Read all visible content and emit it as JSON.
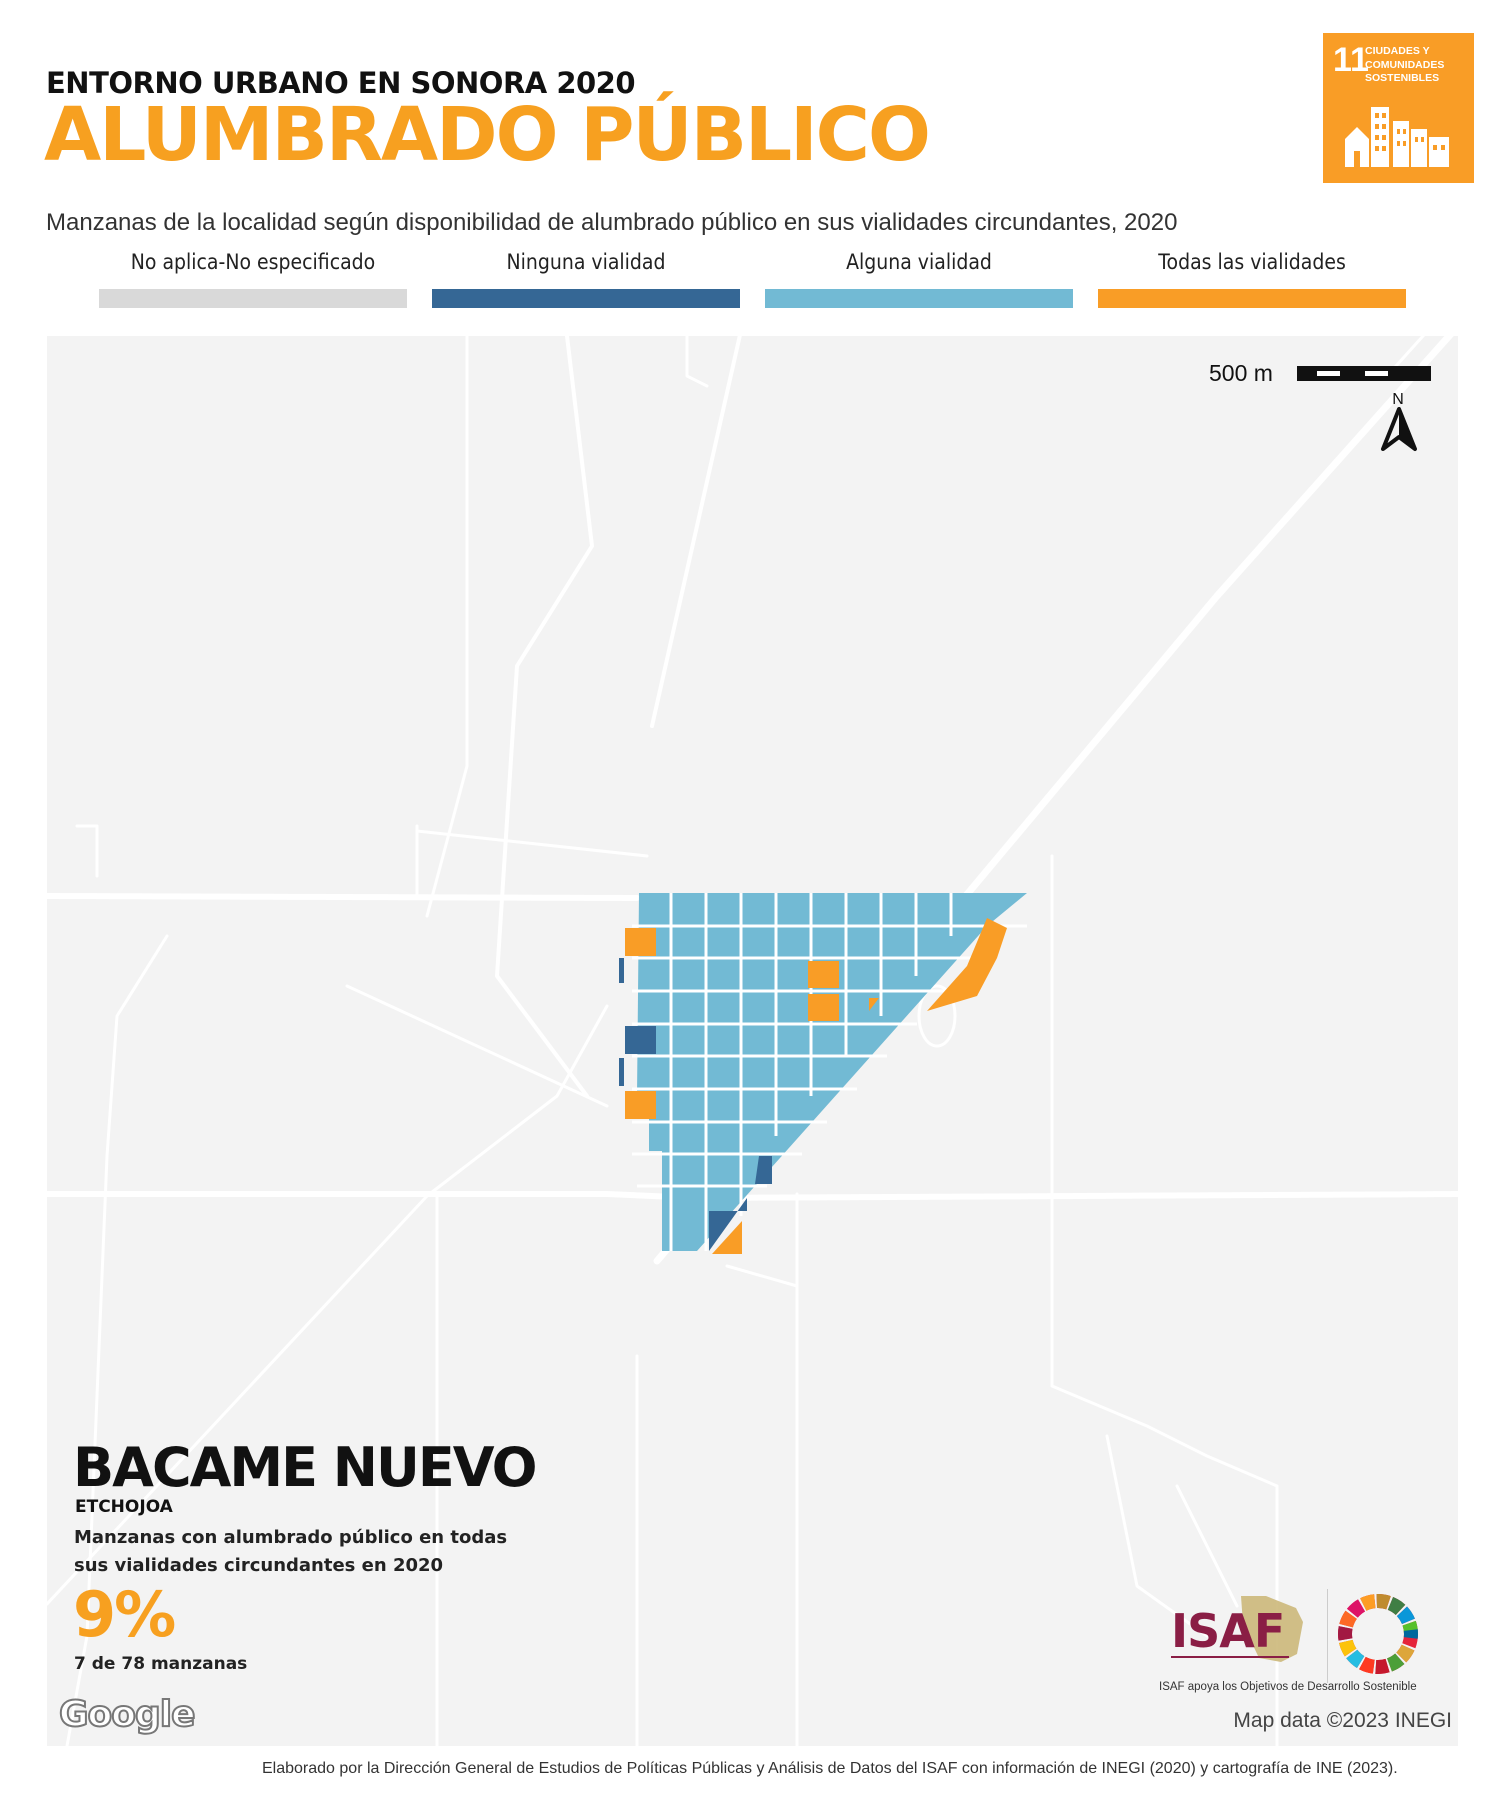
{
  "header": {
    "supertitle": "ENTORNO URBANO EN SONORA 2020",
    "title": "ALUMBRADO PÚBLICO",
    "subtitle": "Manzanas de la localidad según disponibilidad de alumbrado público en sus vialidades circundantes, 2020"
  },
  "sdg_badge": {
    "number": "11",
    "label": "CIUDADES Y COMUNIDADES SOSTENIBLES",
    "color": "#f99d26"
  },
  "legend": [
    {
      "label": "No aplica-No especificado",
      "color": "#d9d9d9"
    },
    {
      "label": "Ninguna vialidad",
      "color": "#356795"
    },
    {
      "label": "Alguna vialidad",
      "color": "#72bad4"
    },
    {
      "label": "Todas las vialidades",
      "color": "#f99d26"
    }
  ],
  "map": {
    "scale_label": "500 m",
    "north_label": "N",
    "attribution": "Map data ©2023 INEGI",
    "provider_logo": "Google"
  },
  "locality": {
    "name": "BACAME NUEVO",
    "municipality": "ETCHOJOA",
    "description": "Manzanas con alumbrado público en todas sus vialidades circundantes en 2020",
    "percent": "9%",
    "count": "7 de 78 manzanas",
    "percent_value": 9,
    "blocks_all_streets": 7,
    "blocks_total": 78
  },
  "isaf": {
    "logo_text": "ISAF",
    "tagline": "ISAF apoya los Objetivos de Desarrollo Sostenible"
  },
  "footer": "Elaborado por la Dirección General de Estudios de Políticas Públicas y Análisis de Datos del ISAF con información de INEGI (2020) y cartografía de INE (2023)."
}
